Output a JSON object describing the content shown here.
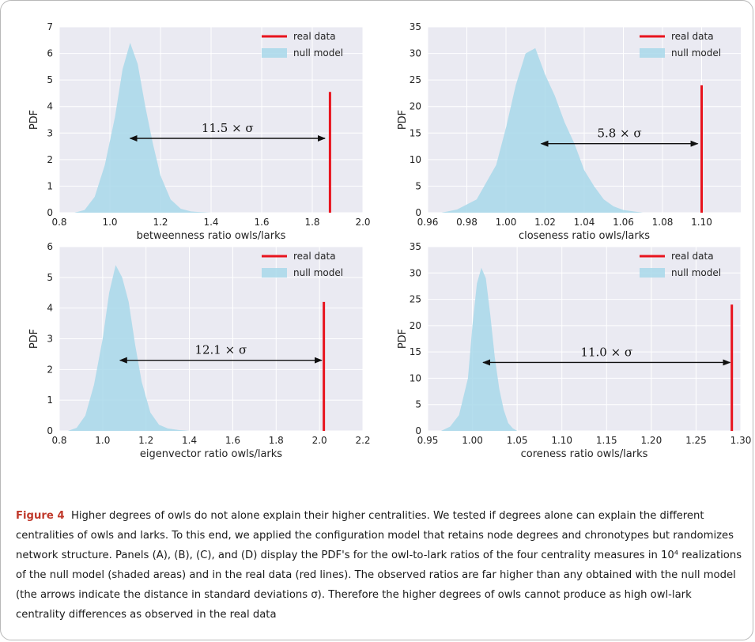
{
  "caption": {
    "label": "Figure 4",
    "text": "Higher degrees of owls do not alone explain their higher centralities. We tested if degrees alone can explain the different centralities of owls and larks. To this end, we applied the configuration model that retains node degrees and chronotypes but randomizes network structure. Panels (A), (B), (C), and (D) display the PDF's for the owl-to-lark ratios of the four centrality measures in 10⁴ realizations of the null model (shaded areas) and in the real data (red lines). The observed ratios are far higher than any obtained with the null model (the arrows indicate the distance in standard deviations σ). Therefore the higher degrees of owls cannot produce as high owl-lark centrality differences as observed in the real data"
  },
  "colors": {
    "real": "#e8141e",
    "null": "#a8d8ea",
    "grid": "#ffffff",
    "panel_bg": "#eaeaf2"
  },
  "chart_data": [
    {
      "type": "area",
      "xlabel": "betweenness ratio owls/larks",
      "ylabel": "PDF",
      "xlim": [
        0.8,
        2.0
      ],
      "ylim": [
        0,
        7
      ],
      "xticks": [
        "0.8",
        "1.0",
        "1.2",
        "1.4",
        "1.6",
        "1.8",
        "2.0"
      ],
      "yticks": [
        "0",
        "1",
        "2",
        "3",
        "4",
        "5",
        "6",
        "7"
      ],
      "legend": {
        "position": "top-right",
        "real": "real data",
        "null": "null model"
      },
      "null_model": {
        "x": [
          0.86,
          0.9,
          0.94,
          0.98,
          1.02,
          1.05,
          1.08,
          1.11,
          1.14,
          1.17,
          1.2,
          1.24,
          1.28,
          1.32,
          1.36,
          1.4
        ],
        "y": [
          0,
          0.1,
          0.6,
          1.8,
          3.6,
          5.4,
          6.4,
          5.6,
          4.0,
          2.6,
          1.4,
          0.5,
          0.15,
          0.05,
          0.02,
          0
        ]
      },
      "real_data": {
        "x": 1.87,
        "y": 4.55
      },
      "arrow": {
        "x_start": 1.08,
        "x_end": 1.85,
        "y": 2.8,
        "label": "11.5 × σ"
      }
    },
    {
      "type": "area",
      "xlabel": "closeness ratio owls/larks",
      "ylabel": "PDF",
      "xlim": [
        0.96,
        1.12
      ],
      "ylim": [
        0,
        35
      ],
      "xticks": [
        "0.96",
        "0.98",
        "1.00",
        "1.02",
        "1.04",
        "1.06",
        "1.08",
        "1.10"
      ],
      "yticks": [
        "0",
        "5",
        "10",
        "15",
        "20",
        "25",
        "30",
        "35"
      ],
      "legend": {
        "position": "top-right",
        "real": "real data",
        "null": "null model"
      },
      "null_model": {
        "x": [
          0.967,
          0.975,
          0.985,
          0.995,
          1.0,
          1.005,
          1.01,
          1.015,
          1.02,
          1.025,
          1.03,
          1.035,
          1.04,
          1.045,
          1.05,
          1.055,
          1.06,
          1.07
        ],
        "y": [
          0,
          0.6,
          2.5,
          9,
          16,
          24,
          30,
          31,
          26,
          22,
          17,
          13,
          8,
          5,
          2.5,
          1.2,
          0.5,
          0
        ]
      },
      "real_data": {
        "x": 1.1,
        "y": 24
      },
      "arrow": {
        "x_start": 1.018,
        "x_end": 1.098,
        "y": 13,
        "label": "5.8 × σ"
      }
    },
    {
      "type": "area",
      "xlabel": "eigenvector ratio owls/larks",
      "ylabel": "PDF",
      "xlim": [
        0.8,
        2.2
      ],
      "ylim": [
        0,
        6
      ],
      "xticks": [
        "0.8",
        "1.0",
        "1.2",
        "1.4",
        "1.6",
        "1.8",
        "2.0",
        "2.2"
      ],
      "yticks": [
        "0",
        "1",
        "2",
        "3",
        "4",
        "5",
        "6"
      ],
      "legend": {
        "position": "top-right",
        "real": "real data",
        "null": "null model"
      },
      "null_model": {
        "x": [
          0.84,
          0.88,
          0.92,
          0.96,
          1.0,
          1.03,
          1.06,
          1.09,
          1.12,
          1.15,
          1.18,
          1.22,
          1.26,
          1.3,
          1.35,
          1.4
        ],
        "y": [
          0,
          0.1,
          0.5,
          1.5,
          3.0,
          4.5,
          5.4,
          5.0,
          4.2,
          2.8,
          1.6,
          0.6,
          0.2,
          0.08,
          0.03,
          0
        ]
      },
      "real_data": {
        "x": 2.02,
        "y": 4.2
      },
      "arrow": {
        "x_start": 1.08,
        "x_end": 2.01,
        "y": 2.3,
        "label": "12.1 × σ"
      }
    },
    {
      "type": "area",
      "xlabel": "coreness ratio owls/larks",
      "ylabel": "PDF",
      "xlim": [
        0.95,
        1.3
      ],
      "ylim": [
        0,
        35
      ],
      "xticks": [
        "0.95",
        "1.00",
        "1.05",
        "1.10",
        "1.15",
        "1.20",
        "1.25",
        "1.30"
      ],
      "yticks": [
        "0",
        "5",
        "10",
        "15",
        "20",
        "25",
        "30",
        "35"
      ],
      "legend": {
        "position": "top-right",
        "real": "real data",
        "null": "null model"
      },
      "null_model": {
        "x": [
          0.965,
          0.975,
          0.985,
          0.995,
          1.0,
          1.005,
          1.01,
          1.015,
          1.02,
          1.025,
          1.03,
          1.035,
          1.04,
          1.045,
          1.05
        ],
        "y": [
          0,
          0.8,
          3,
          10,
          20,
          28,
          31,
          29,
          22,
          14,
          8,
          4,
          1.5,
          0.5,
          0
        ]
      },
      "real_data": {
        "x": 1.29,
        "y": 24
      },
      "arrow": {
        "x_start": 1.012,
        "x_end": 1.288,
        "y": 13,
        "label": "11.0 × σ"
      }
    }
  ]
}
